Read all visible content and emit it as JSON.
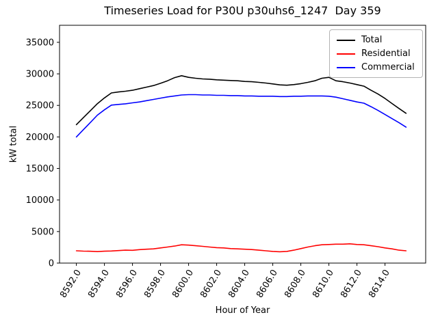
{
  "chart_data": {
    "type": "line",
    "title": "Timeseries Load for P30U p30uhs6_1247  Day 359",
    "xlabel": "Hour of Year",
    "ylabel": "kW total",
    "xlim": [
      8590.8,
      8616.9
    ],
    "ylim": [
      0,
      37700
    ],
    "grid": false,
    "legend_position": "upper right",
    "xticks": [
      8592,
      8594,
      8596,
      8598,
      8600,
      8602,
      8604,
      8606,
      8608,
      8610,
      8612,
      8614
    ],
    "xtick_labels": [
      "8592.0",
      "8594.0",
      "8596.0",
      "8598.0",
      "8600.0",
      "8602.0",
      "8604.0",
      "8606.0",
      "8608.0",
      "8610.0",
      "8612.0",
      "8614.0"
    ],
    "yticks": [
      0,
      5000,
      10000,
      15000,
      20000,
      25000,
      30000,
      35000
    ],
    "ytick_labels": [
      "0",
      "5000",
      "10000",
      "15000",
      "20000",
      "25000",
      "30000",
      "35000"
    ],
    "x": [
      8592,
      8592.5,
      8593,
      8593.5,
      8594,
      8594.5,
      8595,
      8595.5,
      8596,
      8596.5,
      8597,
      8597.5,
      8598,
      8598.5,
      8599,
      8599.5,
      8600,
      8600.5,
      8601,
      8601.5,
      8602,
      8602.5,
      8603,
      8603.5,
      8604,
      8604.5,
      8605,
      8605.5,
      8606,
      8606.5,
      8607,
      8607.5,
      8608,
      8608.5,
      8609,
      8609.5,
      8610,
      8610.5,
      8611,
      8611.5,
      8612,
      8612.5,
      8613,
      8613.5,
      8614,
      8614.5,
      8615,
      8615.5
    ],
    "series": [
      {
        "name": "Total",
        "color": "#000000",
        "values": [
          21950,
          23050,
          24170,
          25270,
          26180,
          26970,
          27130,
          27250,
          27400,
          27650,
          27900,
          28150,
          28500,
          28900,
          29400,
          29700,
          29450,
          29300,
          29200,
          29150,
          29050,
          29000,
          28950,
          28900,
          28800,
          28750,
          28650,
          28550,
          28400,
          28250,
          28200,
          28300,
          28450,
          28650,
          28900,
          29300,
          29450,
          28900,
          28750,
          28550,
          28300,
          28050,
          27400,
          26800,
          26100,
          25300,
          24500,
          23750
        ]
      },
      {
        "name": "Residential",
        "color": "#ff0000",
        "values": [
          1950,
          1900,
          1870,
          1820,
          1880,
          1920,
          1980,
          2050,
          2030,
          2130,
          2200,
          2250,
          2400,
          2550,
          2700,
          2900,
          2850,
          2750,
          2650,
          2550,
          2450,
          2400,
          2300,
          2250,
          2200,
          2150,
          2050,
          1950,
          1850,
          1800,
          1850,
          2050,
          2300,
          2550,
          2750,
          2900,
          2950,
          3000,
          3000,
          3050,
          2950,
          2900,
          2750,
          2600,
          2400,
          2250,
          2050,
          1950
        ]
      },
      {
        "name": "Commercial",
        "color": "#0000ff",
        "values": [
          20000,
          21150,
          22300,
          23450,
          24300,
          25050,
          25150,
          25250,
          25400,
          25550,
          25750,
          25950,
          26150,
          26350,
          26500,
          26650,
          26700,
          26700,
          26650,
          26650,
          26600,
          26600,
          26550,
          26550,
          26500,
          26500,
          26450,
          26450,
          26450,
          26400,
          26400,
          26450,
          26450,
          26500,
          26500,
          26500,
          26450,
          26300,
          26050,
          25800,
          25550,
          25350,
          24800,
          24200,
          23550,
          22900,
          22250,
          21550
        ]
      }
    ]
  }
}
